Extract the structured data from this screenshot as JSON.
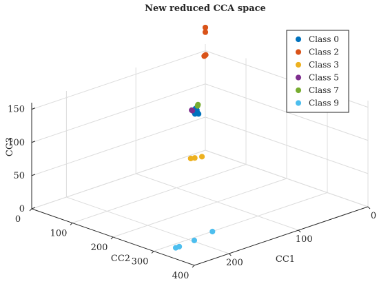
{
  "chart_data": {
    "type": "scatter",
    "title": "New reduced CCA space",
    "xlabel": "CC1",
    "ylabel": "CC2",
    "zlabel": "CC3",
    "x_ticks": [
      "0",
      "100",
      "200",
      "300",
      "400"
    ],
    "y_ticks": [
      "0",
      "100",
      "200"
    ],
    "z_ticks": [
      "0",
      "50",
      "100",
      "150"
    ],
    "xlim": [
      0,
      400
    ],
    "ylim": [
      0,
      250
    ],
    "zlim": [
      0,
      160
    ],
    "grid": true,
    "legend_position": "top-right",
    "series": [
      {
        "name": "Class 0",
        "color": "#0072BD",
        "points": [
          [
            -5,
            12,
            58
          ],
          [
            -3,
            10,
            60
          ],
          [
            -4,
            14,
            62
          ],
          [
            -2,
            11,
            64
          ],
          [
            -3,
            8,
            57
          ],
          [
            -4,
            12,
            66
          ]
        ]
      },
      {
        "name": "Class 2",
        "color": "#D95319",
        "points": [
          [
            0,
            0,
            185
          ],
          [
            0,
            0,
            178
          ],
          [
            0,
            1,
            143
          ],
          [
            1,
            0,
            144
          ],
          [
            -1,
            1,
            142
          ]
        ]
      },
      {
        "name": "Class 3",
        "color": "#EDB120",
        "points": [
          [
            3,
            17,
            -5
          ],
          [
            7,
            9,
            -5
          ],
          [
            0,
            21,
            -5
          ]
        ]
      },
      {
        "name": "Class 5",
        "color": "#7E2F8E",
        "points": [
          [
            -8,
            14,
            63
          ],
          [
            -8,
            15,
            64
          ]
        ]
      },
      {
        "name": "Class 7",
        "color": "#77AC30",
        "points": [
          [
            -2,
            10,
            70
          ],
          [
            -1,
            10,
            72
          ]
        ]
      },
      {
        "name": "Class 9",
        "color": "#4DBEEE",
        "points": [
          [
            286,
            210,
            -12
          ],
          [
            286,
            205,
            -12
          ],
          [
            282,
            181,
            -12
          ],
          [
            272,
            149,
            -12
          ]
        ]
      }
    ]
  }
}
